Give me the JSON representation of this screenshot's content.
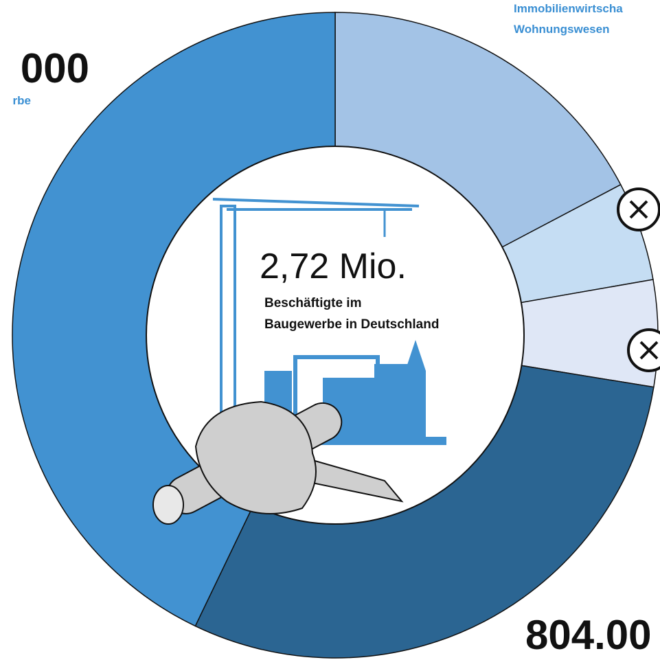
{
  "chart_data": {
    "type": "donut",
    "center_value": "2,72 Mio.",
    "center_text": [
      "Beschäftigte im",
      "Baugewerbe in Deutschland"
    ],
    "categories": [
      [
        "Immobilienwirtscha",
        "Wohnungswesen"
      ],
      null,
      null,
      null,
      [
        "rbe"
      ]
    ],
    "values": [
      470000,
      135000,
      145000,
      804000,
      1166000
    ],
    "value_labels": [
      null,
      null,
      null,
      "804.00",
      "000"
    ],
    "colors": [
      "#a3c3e6",
      "#c5ddf3",
      "#dfe7f6",
      "#2b6592",
      "#4292d1"
    ]
  }
}
